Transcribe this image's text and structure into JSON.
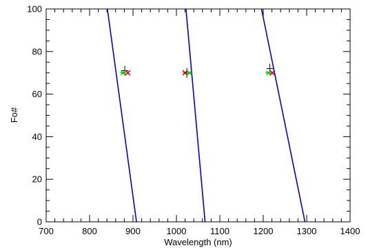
{
  "chart_data": {
    "type": "line",
    "xlabel": "Wavelength (nm)",
    "ylabel": "Fo#",
    "xlim": [
      700,
      1400
    ],
    "ylim": [
      0,
      100
    ],
    "x_major_ticks": [
      700,
      800,
      900,
      1000,
      1100,
      1200,
      1300,
      1400
    ],
    "x_tick_labels": [
      "700",
      "800",
      "900",
      "1000",
      "1100",
      "1200",
      "1300",
      "1400"
    ],
    "y_major_ticks": [
      0,
      20,
      40,
      60,
      80,
      100
    ],
    "y_tick_labels": [
      "0",
      "20",
      "40",
      "60",
      "80",
      "100"
    ],
    "x_minor_step": 20,
    "y_minor_step": 5,
    "grid": false,
    "line_color": "#0000cc",
    "series": [
      {
        "x": [
          908,
          841
        ],
        "y": [
          0,
          100
        ]
      },
      {
        "x": [
          1066,
          1022
        ],
        "y": [
          0,
          100
        ]
      },
      {
        "x": [
          1296,
          1196
        ],
        "y": [
          0,
          100
        ]
      }
    ],
    "green_markers": {
      "color": "#00cc00",
      "symbol": "star",
      "points": [
        {
          "x": 877,
          "y": 70
        },
        {
          "x": 1030,
          "y": 70
        },
        {
          "x": 1212,
          "y": 70
        }
      ]
    },
    "red_markers": {
      "color": "#dd0000",
      "symbol": "x",
      "points": [
        {
          "x": 888,
          "y": 70
        },
        {
          "x": 1020,
          "y": 70
        },
        {
          "x": 1221,
          "y": 70
        }
      ]
    },
    "black_markers": {
      "color": "#000000",
      "symbol": "plus",
      "points": [
        {
          "x": 881,
          "y": 71
        },
        {
          "x": 1024,
          "y": 70
        },
        {
          "x": 1215,
          "y": 72
        }
      ]
    }
  }
}
